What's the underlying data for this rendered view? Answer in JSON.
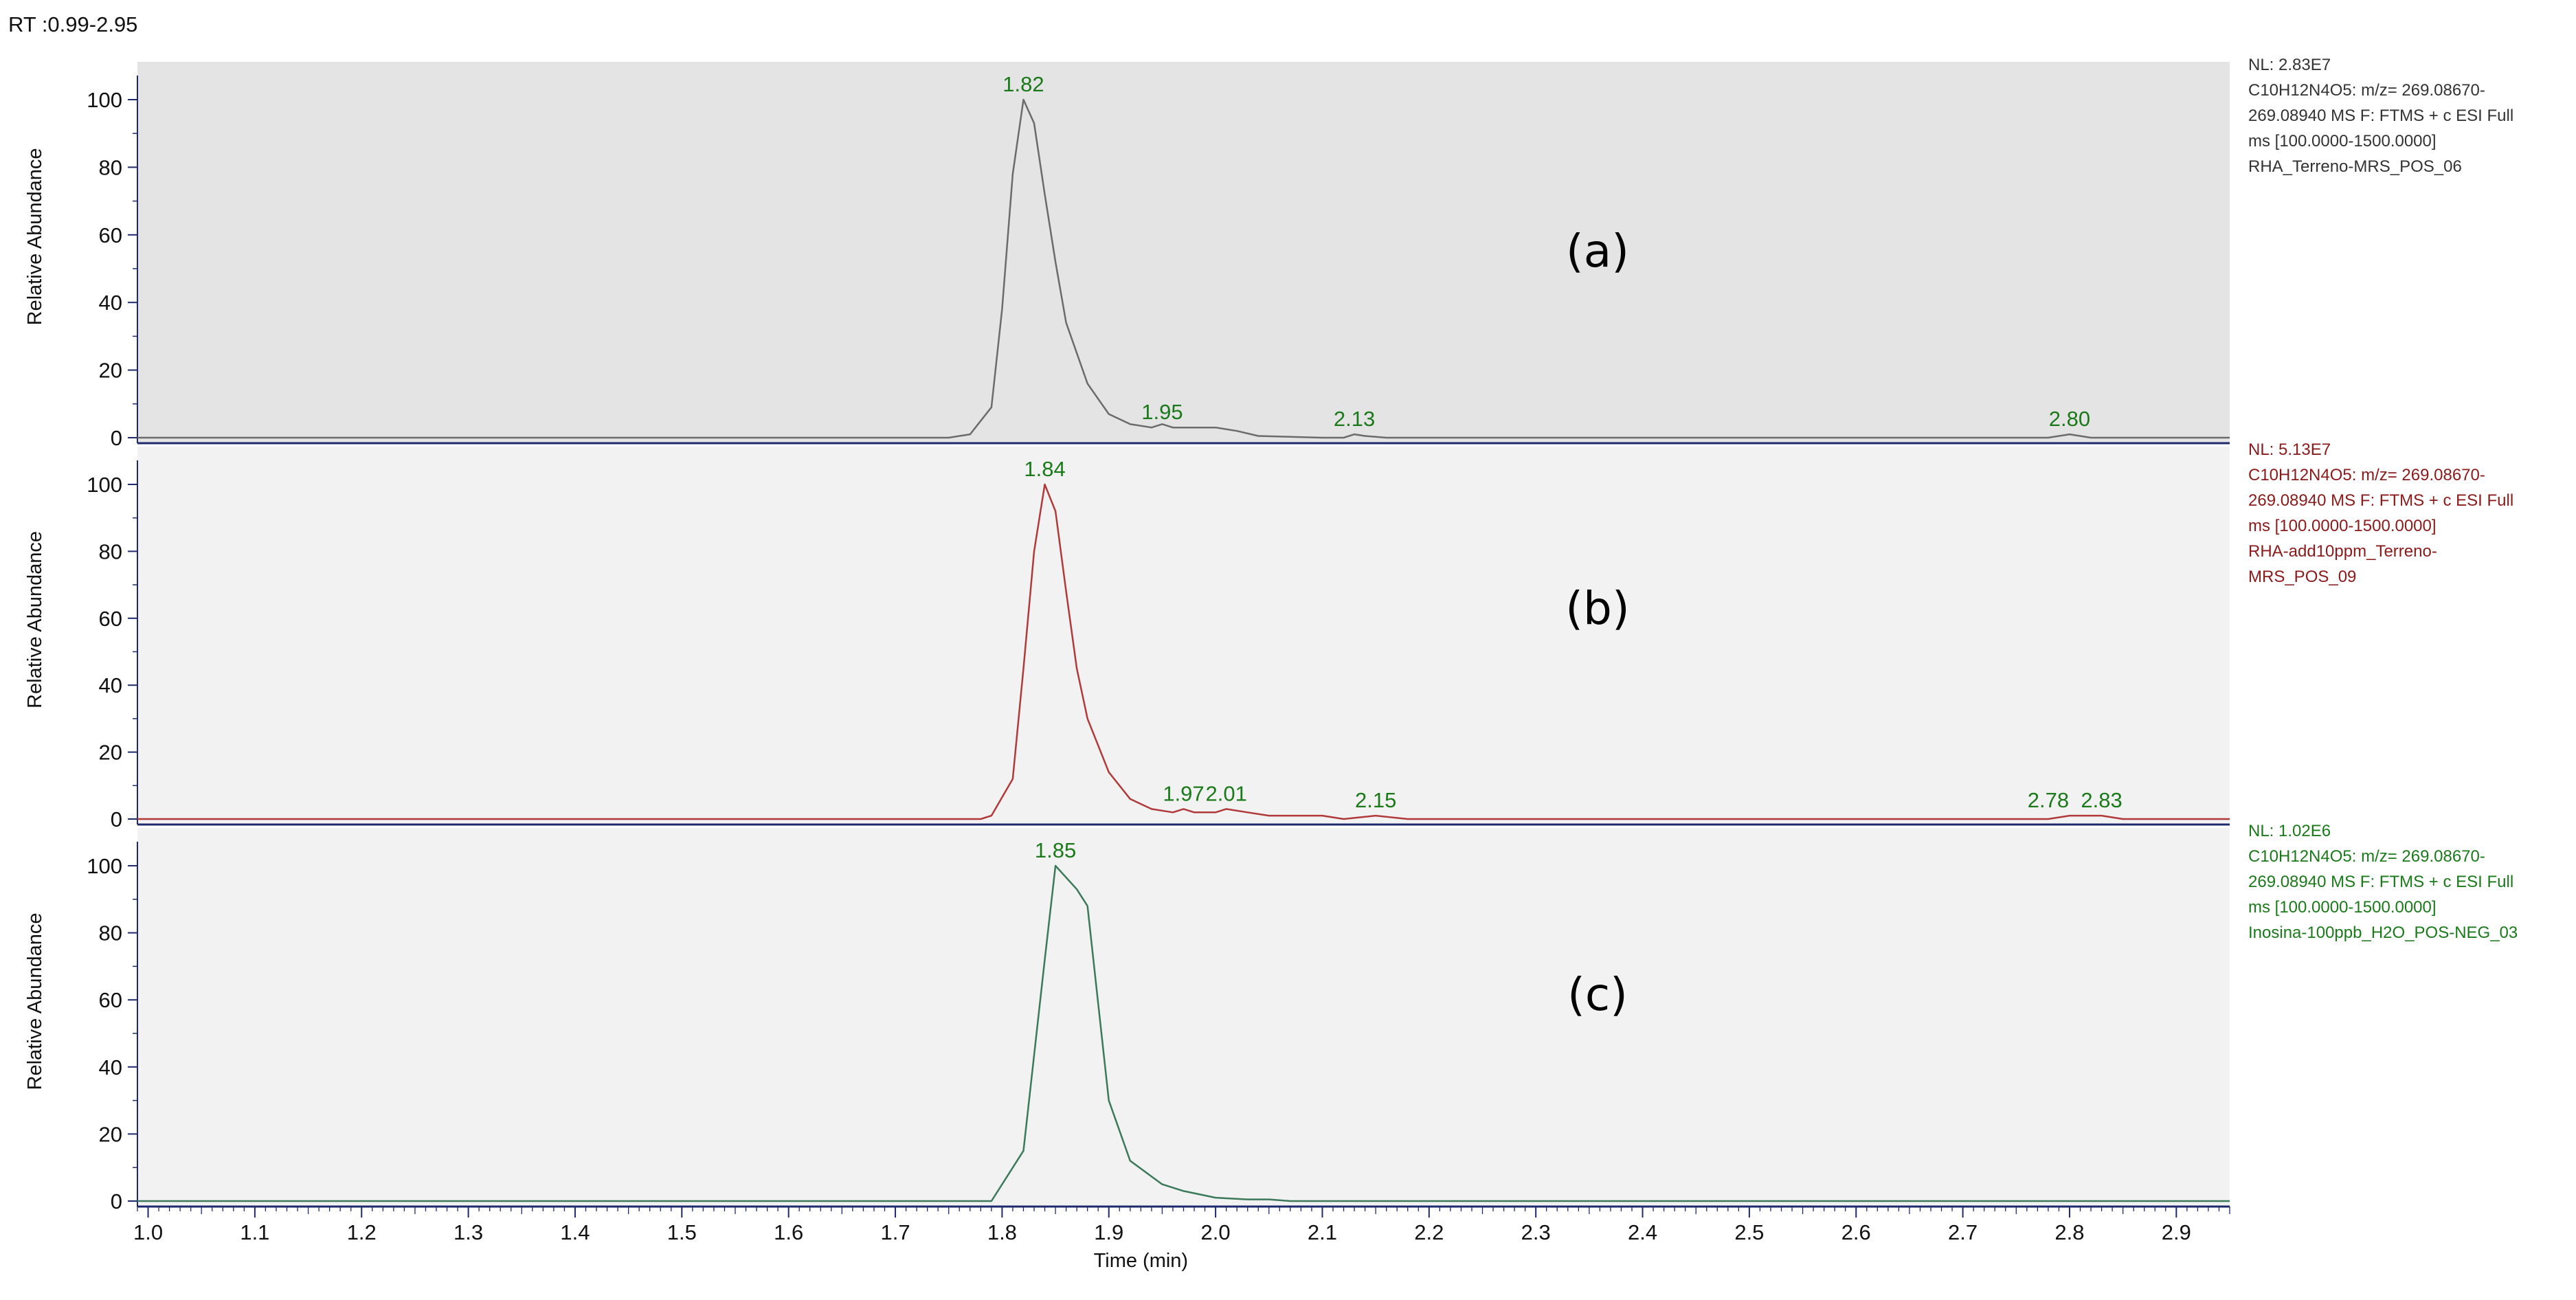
{
  "header": {
    "rt_range": "RT :0.99-2.95"
  },
  "colors": {
    "axis": "#1f2a6e",
    "peak_label": "#1a7a1a",
    "panel_bg_a": "#e4e4e4",
    "panel_bg": "#f2f2f2"
  },
  "chart_data": [
    {
      "type": "line",
      "panel": "(a)",
      "color": "#6b6b6b",
      "info_color": "#333333",
      "info_lines": [
        "NL: 2.83E7",
        "C10H12N4O5: m/z= 269.08670-",
        "269.08940 MS  F: FTMS + c ESI Full",
        "ms [100.0000-1500.0000]",
        "RHA_Terreno-MRS_POS_06"
      ],
      "ylabel": "Relative Abundance",
      "ylim": [
        0,
        100
      ],
      "xlim": [
        0.99,
        2.95
      ],
      "y_ticks": [
        "0",
        "20",
        "40",
        "60",
        "80",
        "100"
      ],
      "peak_labels": [
        {
          "text": "1.82",
          "x": 1.82,
          "y": 100
        },
        {
          "text": "1.95",
          "x": 1.95,
          "y": 3
        },
        {
          "text": "2.13",
          "x": 2.13,
          "y": 1
        },
        {
          "text": "2.80",
          "x": 2.8,
          "y": 1
        }
      ],
      "x": [
        0.99,
        1.75,
        1.77,
        1.79,
        1.8,
        1.81,
        1.82,
        1.83,
        1.84,
        1.85,
        1.86,
        1.88,
        1.9,
        1.92,
        1.94,
        1.95,
        1.96,
        1.97,
        1.98,
        2.0,
        2.02,
        2.04,
        2.1,
        2.12,
        2.13,
        2.14,
        2.16,
        2.78,
        2.8,
        2.82,
        2.95
      ],
      "y": [
        0,
        0,
        1,
        9,
        38,
        78,
        100,
        93,
        72,
        52,
        34,
        16,
        7,
        4,
        3,
        4,
        3,
        3,
        3,
        3,
        2,
        0.5,
        0,
        0,
        1,
        0.5,
        0,
        0,
        1,
        0,
        0
      ]
    },
    {
      "type": "line",
      "panel": "(b)",
      "color": "#b03a3a",
      "info_color": "#8b1a1a",
      "info_lines": [
        "NL: 5.13E7",
        "C10H12N4O5: m/z= 269.08670-",
        "269.08940 MS  F: FTMS + c ESI Full",
        "ms [100.0000-1500.0000]",
        "RHA-add10ppm_Terreno-",
        "MRS_POS_09"
      ],
      "ylabel": "Relative Abundance",
      "ylim": [
        0,
        100
      ],
      "xlim": [
        0.99,
        2.95
      ],
      "y_ticks": [
        "0",
        "20",
        "40",
        "60",
        "80",
        "100"
      ],
      "peak_labels": [
        {
          "text": "1.84",
          "x": 1.84,
          "y": 100
        },
        {
          "text": "1.97",
          "x": 1.97,
          "y": 3
        },
        {
          "text": "2.01",
          "x": 2.01,
          "y": 3
        },
        {
          "text": "2.15",
          "x": 2.15,
          "y": 1
        },
        {
          "text": "2.78",
          "x": 2.78,
          "y": 1
        },
        {
          "text": "2.83",
          "x": 2.83,
          "y": 1
        }
      ],
      "x": [
        0.99,
        1.78,
        1.79,
        1.81,
        1.82,
        1.83,
        1.84,
        1.85,
        1.86,
        1.87,
        1.88,
        1.9,
        1.92,
        1.94,
        1.96,
        1.97,
        1.98,
        2.0,
        2.01,
        2.03,
        2.05,
        2.1,
        2.12,
        2.15,
        2.18,
        2.78,
        2.8,
        2.83,
        2.85,
        2.95
      ],
      "y": [
        0,
        0,
        1,
        12,
        45,
        80,
        100,
        92,
        68,
        45,
        30,
        14,
        6,
        3,
        2,
        3,
        2,
        2,
        3,
        2,
        1,
        1,
        0,
        1,
        0,
        0,
        1,
        1,
        0,
        0
      ]
    },
    {
      "type": "line",
      "panel": "(c)",
      "color": "#3a7a5a",
      "info_color": "#1a7a1a",
      "info_lines": [
        "NL: 1.02E6",
        "C10H12N4O5: m/z= 269.08670-",
        "269.08940 MS  F: FTMS + c ESI Full",
        "ms [100.0000-1500.0000]",
        "Inosina-100ppb_H2O_POS-NEG_03"
      ],
      "ylabel": "Relative Abundance",
      "xlabel": "Time (min)",
      "ylim": [
        0,
        100
      ],
      "xlim": [
        0.99,
        2.95
      ],
      "y_ticks": [
        "0",
        "20",
        "40",
        "60",
        "80",
        "100"
      ],
      "x_ticks": [
        "1.0",
        "1.1",
        "1.2",
        "1.3",
        "1.4",
        "1.5",
        "1.6",
        "1.7",
        "1.8",
        "1.9",
        "2.0",
        "2.1",
        "2.2",
        "2.3",
        "2.4",
        "2.5",
        "2.6",
        "2.7",
        "2.8",
        "2.9"
      ],
      "peak_labels": [
        {
          "text": "1.85",
          "x": 1.85,
          "y": 100
        }
      ],
      "x": [
        0.99,
        1.78,
        1.79,
        1.82,
        1.84,
        1.85,
        1.87,
        1.88,
        1.9,
        1.92,
        1.95,
        1.97,
        2.0,
        2.03,
        2.05,
        2.07,
        2.1,
        2.95
      ],
      "y": [
        0,
        0,
        0,
        15,
        72,
        100,
        93,
        88,
        30,
        12,
        5,
        3,
        1,
        0.5,
        0.5,
        0,
        0,
        0
      ]
    }
  ]
}
